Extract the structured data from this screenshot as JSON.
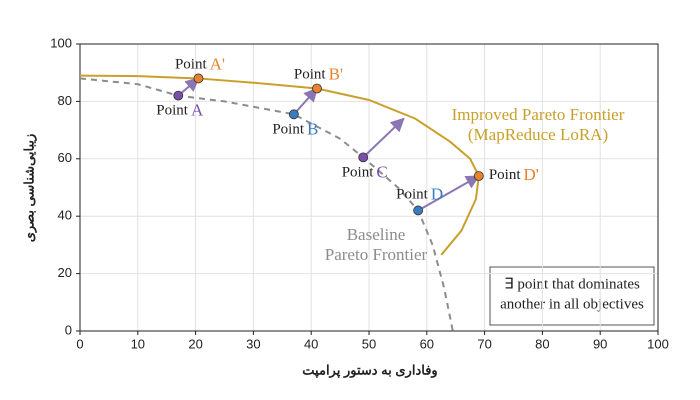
{
  "chart_data": {
    "type": "scatter",
    "xlabel": "وفاداری به دستور پرامپت",
    "ylabel": "زیبایی‌شناسی بصری",
    "xlim": [
      0,
      100
    ],
    "ylim": [
      0,
      100
    ],
    "xticks": [
      0,
      10,
      20,
      30,
      40,
      50,
      60,
      70,
      80,
      90,
      100
    ],
    "yticks": [
      0,
      20,
      40,
      60,
      80,
      100
    ],
    "grid": true,
    "curves": [
      {
        "name": "Improved Pareto Frontier",
        "subname": "(MapReduce LoRA)",
        "color": "#c9a02c",
        "dashed": false,
        "x": [
          0,
          10,
          20.5,
          30,
          41,
          50,
          58,
          64,
          67.5,
          69,
          68.5,
          66,
          62.5
        ],
        "y": [
          89,
          88.8,
          88,
          86.5,
          84.5,
          80.5,
          74,
          66,
          60,
          54,
          46,
          35,
          26.5
        ]
      },
      {
        "name": "Baseline",
        "subname": "Pareto Frontier",
        "color": "#8c8c8c",
        "dashed": true,
        "x": [
          0,
          10,
          17,
          25,
          37,
          45,
          49,
          55,
          58.5,
          61,
          63,
          64.5
        ],
        "y": [
          88,
          86,
          82,
          80,
          75.5,
          67,
          60.5,
          50,
          42,
          30,
          15,
          0
        ]
      }
    ],
    "points": [
      {
        "name": "Point",
        "letter": "A",
        "x": 17,
        "y": 82,
        "color": "#7b4fa8"
      },
      {
        "name": "Point",
        "letter": "A'",
        "x": 20.5,
        "y": 88,
        "color": "#e8822e"
      },
      {
        "name": "Point",
        "letter": "B",
        "x": 37,
        "y": 75.5,
        "color": "#3a7cc0"
      },
      {
        "name": "Point",
        "letter": "B'",
        "x": 41,
        "y": 84.5,
        "color": "#e8822e"
      },
      {
        "name": "Point",
        "letter": "C",
        "x": 49,
        "y": 60.5,
        "color": "#7b4fa8"
      },
      {
        "name": "Point",
        "letter": "D",
        "x": 58.5,
        "y": 42,
        "color": "#3a7cc0"
      },
      {
        "name": "Point",
        "letter": "D'",
        "x": 69,
        "y": 54,
        "color": "#e8822e"
      }
    ],
    "arrows": [
      {
        "x": [
          17,
          20.5
        ],
        "y": [
          82,
          88
        ]
      },
      {
        "x": [
          37,
          41
        ],
        "y": [
          75.5,
          84.5
        ]
      },
      {
        "x": [
          49,
          56
        ],
        "y": [
          60.5,
          74
        ]
      },
      {
        "x": [
          58.5,
          69
        ],
        "y": [
          42,
          54
        ]
      }
    ],
    "arrow_color": "#8b76b3",
    "note": [
      "∃ point that dominates",
      "another in all objectives"
    ]
  }
}
